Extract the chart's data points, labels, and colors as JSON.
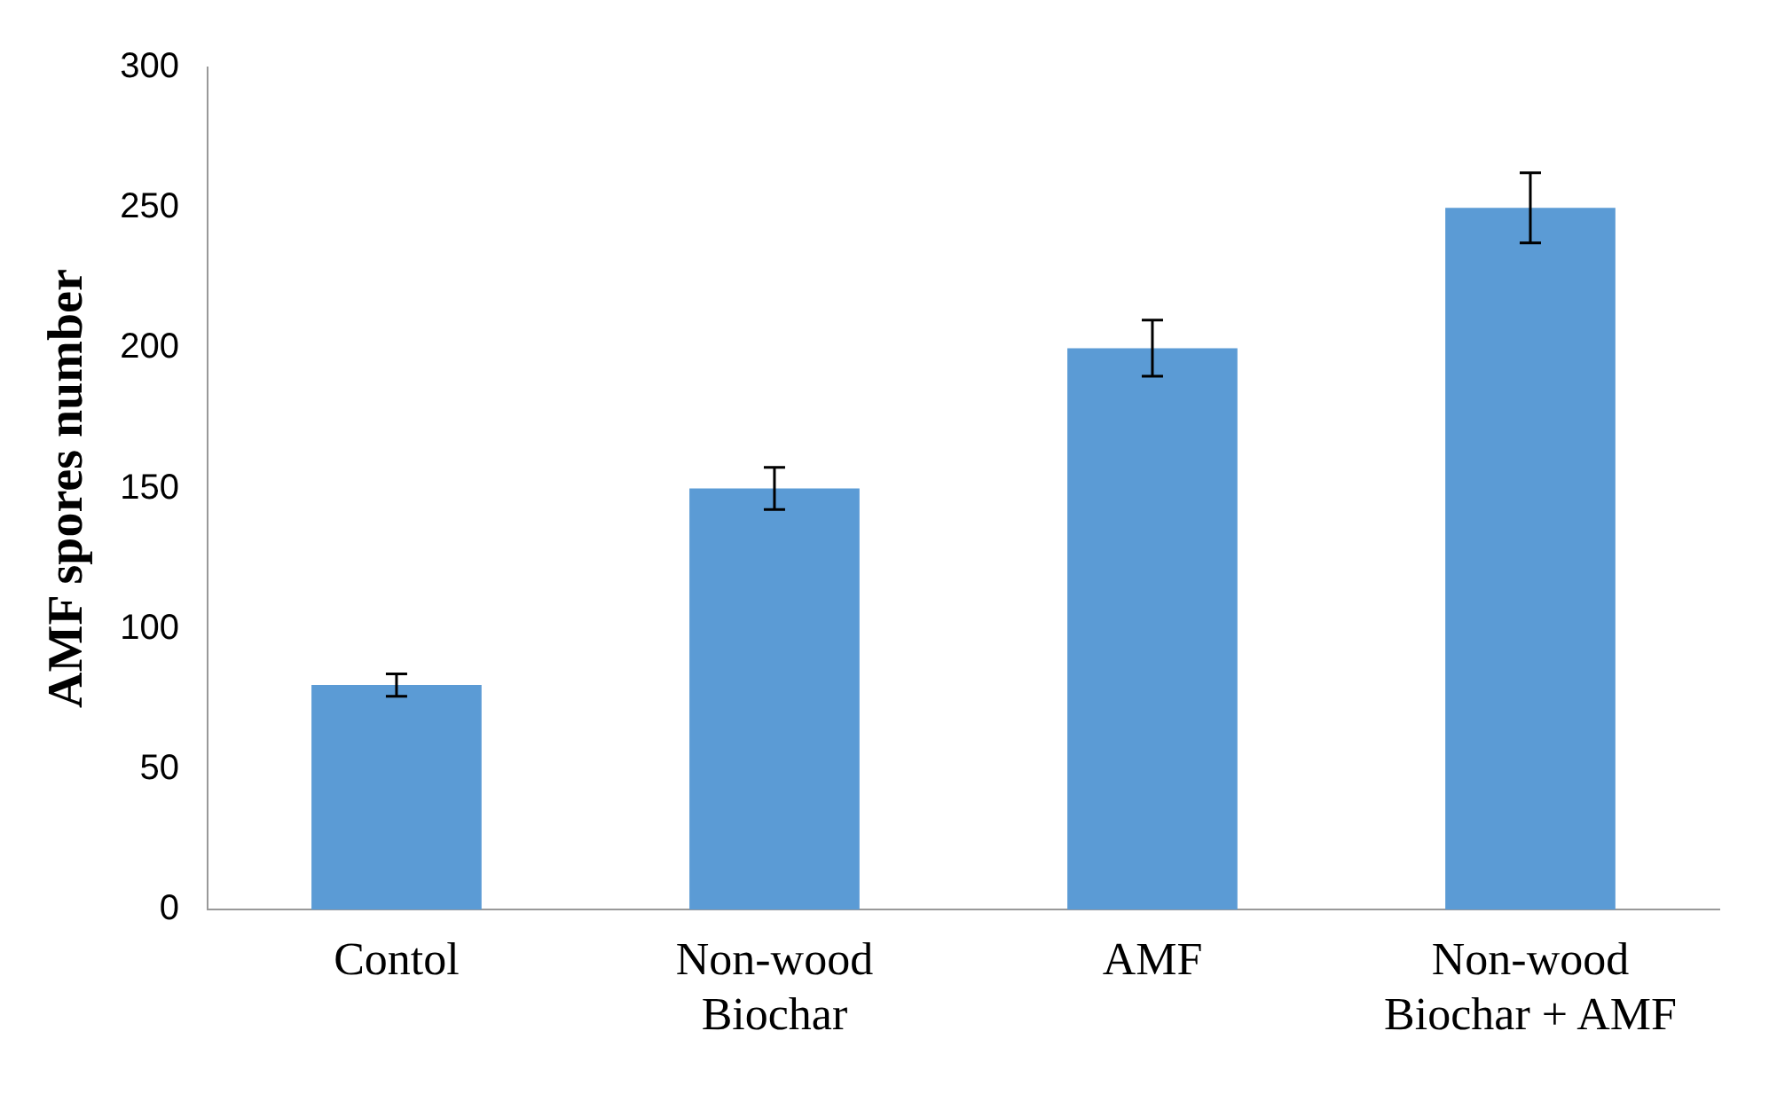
{
  "chart_data": {
    "type": "bar",
    "ylabel": "AMF spores number",
    "categories": [
      "Contol",
      "Non-wood Biochar",
      "AMF",
      "Non-wood Biochar + AMF"
    ],
    "values": [
      80,
      150,
      200,
      250
    ],
    "errors": [
      4,
      7.5,
      10,
      12.5
    ],
    "color": "#5b9bd5",
    "ylim": [
      0,
      300
    ],
    "yticks": [
      0,
      50,
      100,
      150,
      200,
      250,
      300
    ],
    "grid": false,
    "legend": false
  }
}
